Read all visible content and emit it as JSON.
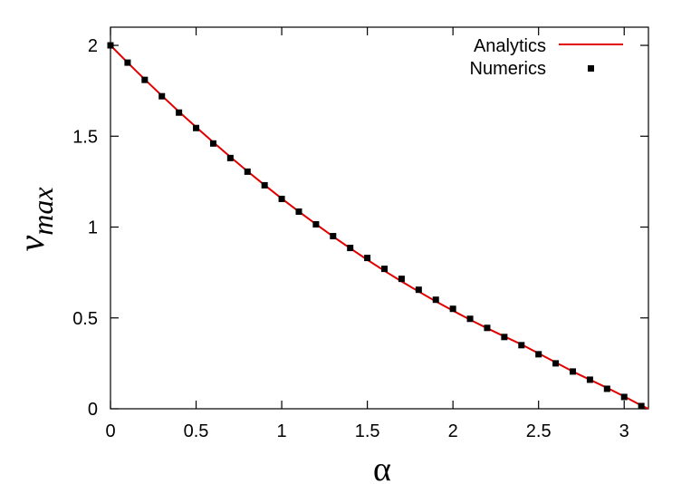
{
  "chart_data": {
    "type": "line",
    "xlabel": "α",
    "ylabel_main": "v",
    "ylabel_sub": "max",
    "xlim": [
      0,
      3.14159
    ],
    "ylim": [
      0,
      2.1
    ],
    "x_ticks": [
      0,
      0.5,
      1,
      1.5,
      2,
      2.5,
      3
    ],
    "x_tick_labels": [
      "0",
      "0.5",
      "1",
      "1.5",
      "2",
      "2.5",
      "3"
    ],
    "y_ticks": [
      0,
      0.5,
      1,
      1.5,
      2
    ],
    "y_tick_labels": [
      "0",
      "0.5",
      "1",
      "1.5",
      "2"
    ],
    "grid": false,
    "legend_position": "top-right",
    "series": [
      {
        "name": "Analytics",
        "style": "line",
        "color": "#e00000",
        "x": [
          0,
          0.1,
          0.2,
          0.3,
          0.4,
          0.5,
          0.6,
          0.7,
          0.8,
          0.9,
          1.0,
          1.1,
          1.2,
          1.3,
          1.4,
          1.5,
          1.6,
          1.7,
          1.8,
          1.9,
          2.0,
          2.1,
          2.2,
          2.3,
          2.4,
          2.5,
          2.6,
          2.7,
          2.8,
          2.9,
          3.0,
          3.1,
          3.14159
        ],
        "y": [
          2.0,
          1.905,
          1.813,
          1.723,
          1.635,
          1.55,
          1.467,
          1.386,
          1.307,
          1.231,
          1.157,
          1.085,
          1.016,
          0.948,
          0.883,
          0.82,
          0.759,
          0.701,
          0.645,
          0.591,
          0.54,
          0.49,
          0.443,
          0.398,
          0.354,
          0.305,
          0.255,
          0.205,
          0.16,
          0.115,
          0.068,
          0.018,
          0.0
        ]
      },
      {
        "name": "Numerics",
        "style": "points",
        "color": "#000000",
        "x": [
          0,
          0.1,
          0.2,
          0.3,
          0.4,
          0.5,
          0.6,
          0.7,
          0.8,
          0.9,
          1.0,
          1.1,
          1.2,
          1.3,
          1.4,
          1.5,
          1.6,
          1.7,
          1.8,
          1.9,
          2.0,
          2.1,
          2.2,
          2.3,
          2.4,
          2.5,
          2.6,
          2.7,
          2.8,
          2.9,
          3.0,
          3.1
        ],
        "y": [
          2.0,
          1.905,
          1.81,
          1.72,
          1.63,
          1.545,
          1.46,
          1.38,
          1.305,
          1.23,
          1.155,
          1.085,
          1.015,
          0.95,
          0.885,
          0.83,
          0.77,
          0.715,
          0.655,
          0.6,
          0.55,
          0.495,
          0.445,
          0.395,
          0.35,
          0.3,
          0.25,
          0.205,
          0.16,
          0.11,
          0.065,
          0.015
        ]
      }
    ]
  }
}
